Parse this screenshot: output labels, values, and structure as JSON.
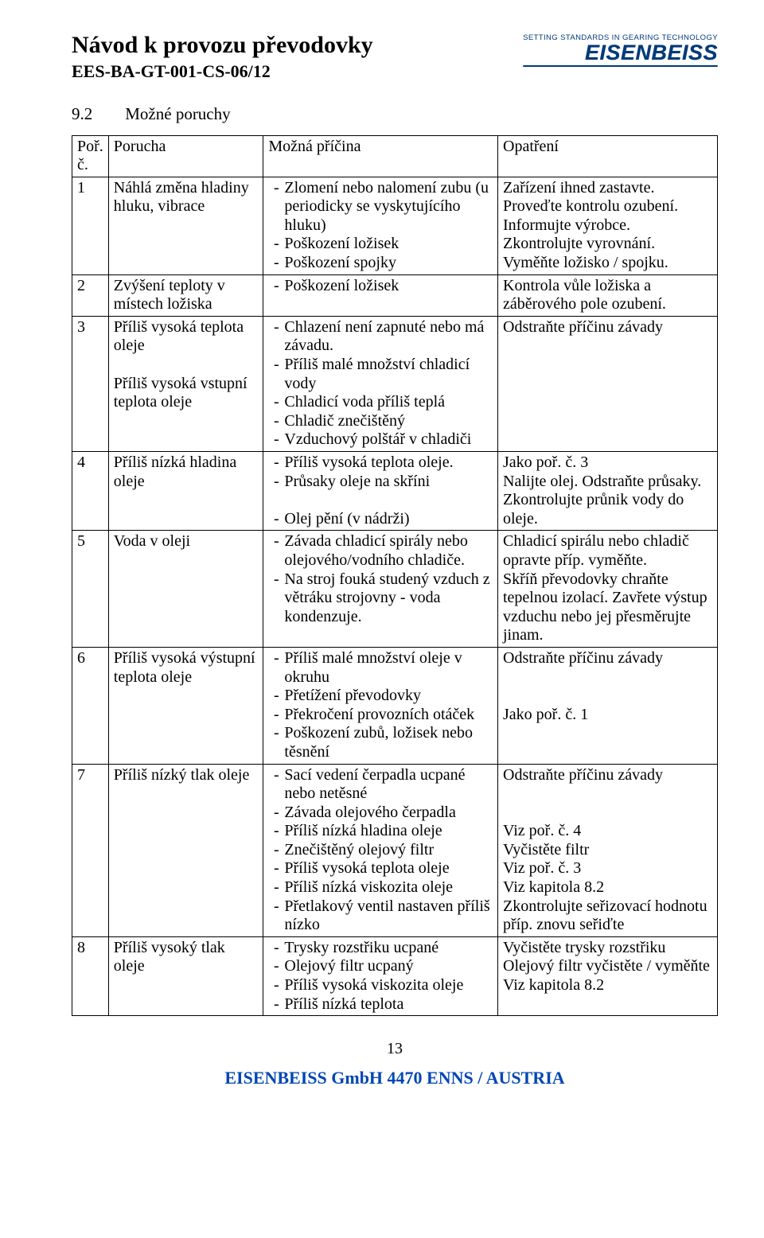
{
  "header": {
    "title": "Návod k provozu převodovky",
    "subtitle": "EES-BA-GT-001-CS-06/12",
    "logo_tagline": "SETTING STANDARDS IN GEARING TECHNOLOGY",
    "logo_text": "EISENBEISS"
  },
  "section": {
    "number": "9.2",
    "title": "Možné poruchy"
  },
  "table": {
    "head": {
      "c0": "Poř. č.",
      "c1": "Porucha",
      "c2": "Možná příčina",
      "c3": "Opatření"
    },
    "rows": [
      {
        "n": "1",
        "fault": "Náhlá změna hladiny hluku, vibrace",
        "causes": [
          "Zlomení nebo nalomení zubu (u periodicky se vyskytujícího hluku)",
          "Poškození ložisek",
          "Poškození spojky"
        ],
        "actions_text": "Zařízení ihned zastavte.\nProveďte kontrolu ozubení.\nInformujte výrobce.\nZkontrolujte vyrovnání.\nVyměňte ložisko / spojku."
      },
      {
        "n": "2",
        "fault": "Zvýšení teploty v místech ložiska",
        "causes": [
          "Poškození ložisek"
        ],
        "actions_text": "Kontrola vůle ložiska a záběrového pole ozubení."
      },
      {
        "n": "3",
        "fault": "Příliš vysoká teplota oleje\n\nPříliš vysoká vstupní\nteplota oleje",
        "causes": [
          "Chlazení není zapnuté nebo má závadu.",
          "Příliš malé množství chladicí vody",
          "Chladicí voda příliš teplá",
          "Chladič znečištěný",
          "Vzduchový polštář v chladiči"
        ],
        "actions_text": "Odstraňte příčinu závady"
      },
      {
        "n": "4",
        "fault": "Příliš nízká hladina oleje",
        "causes": [
          "Příliš vysoká teplota oleje.",
          "Průsaky oleje na skříni",
          "",
          "Olej pění (v nádrži)"
        ],
        "actions_text": "Jako poř. č. 3\nNalijte olej. Odstraňte průsaky.\nZkontrolujte průnik vody do oleje."
      },
      {
        "n": "5",
        "fault": "Voda v oleji",
        "causes": [
          "Závada chladicí spirály nebo olejového/vodního chladiče.",
          "Na stroj fouká studený vzduch z větráku strojovny - voda kondenzuje."
        ],
        "actions_text": "Chladicí spirálu nebo chladič opravte příp. vyměňte.\nSkříň převodovky chraňte tepelnou izolací. Zavřete výstup vzduchu nebo jej přesměrujte jinam."
      },
      {
        "n": "6",
        "fault": "Příliš vysoká výstupní teplota oleje",
        "causes": [
          "Příliš malé množství oleje v okruhu",
          "Přetížení převodovky",
          "Překročení provozních otáček",
          "Poškození zubů, ložisek nebo těsnění"
        ],
        "actions_text": "Odstraňte příčinu závady\n\n\nJako poř. č. 1"
      },
      {
        "n": "7",
        "fault": "Příliš nízký tlak oleje",
        "causes": [
          "Sací vedení čerpadla ucpané nebo netěsné",
          "Závada olejového čerpadla",
          "Příliš nízká hladina oleje",
          "Znečištěný olejový filtr",
          "Příliš vysoká teplota oleje",
          "Příliš nízká viskozita oleje",
          "Přetlakový ventil nastaven příliš nízko"
        ],
        "actions_text": "Odstraňte příčinu závady\n\n\nViz poř. č. 4\nVyčistěte filtr\nViz poř. č. 3\nViz kapitola 8.2\nZkontrolujte seřizovací hodnotu příp. znovu seřiďte"
      },
      {
        "n": "8",
        "fault": "Příliš vysoký tlak oleje",
        "causes": [
          "Trysky rozstřiku ucpané",
          "Olejový filtr ucpaný",
          "Příliš vysoká viskozita oleje",
          "Příliš nízká teplota"
        ],
        "actions_text": "Vyčistěte trysky rozstřiku\nOlejový filtr vyčistěte / vyměňte\nViz kapitola 8.2"
      }
    ]
  },
  "page_number": "13",
  "footer": "EISENBEISS GmbH  4470 ENNS / AUSTRIA"
}
